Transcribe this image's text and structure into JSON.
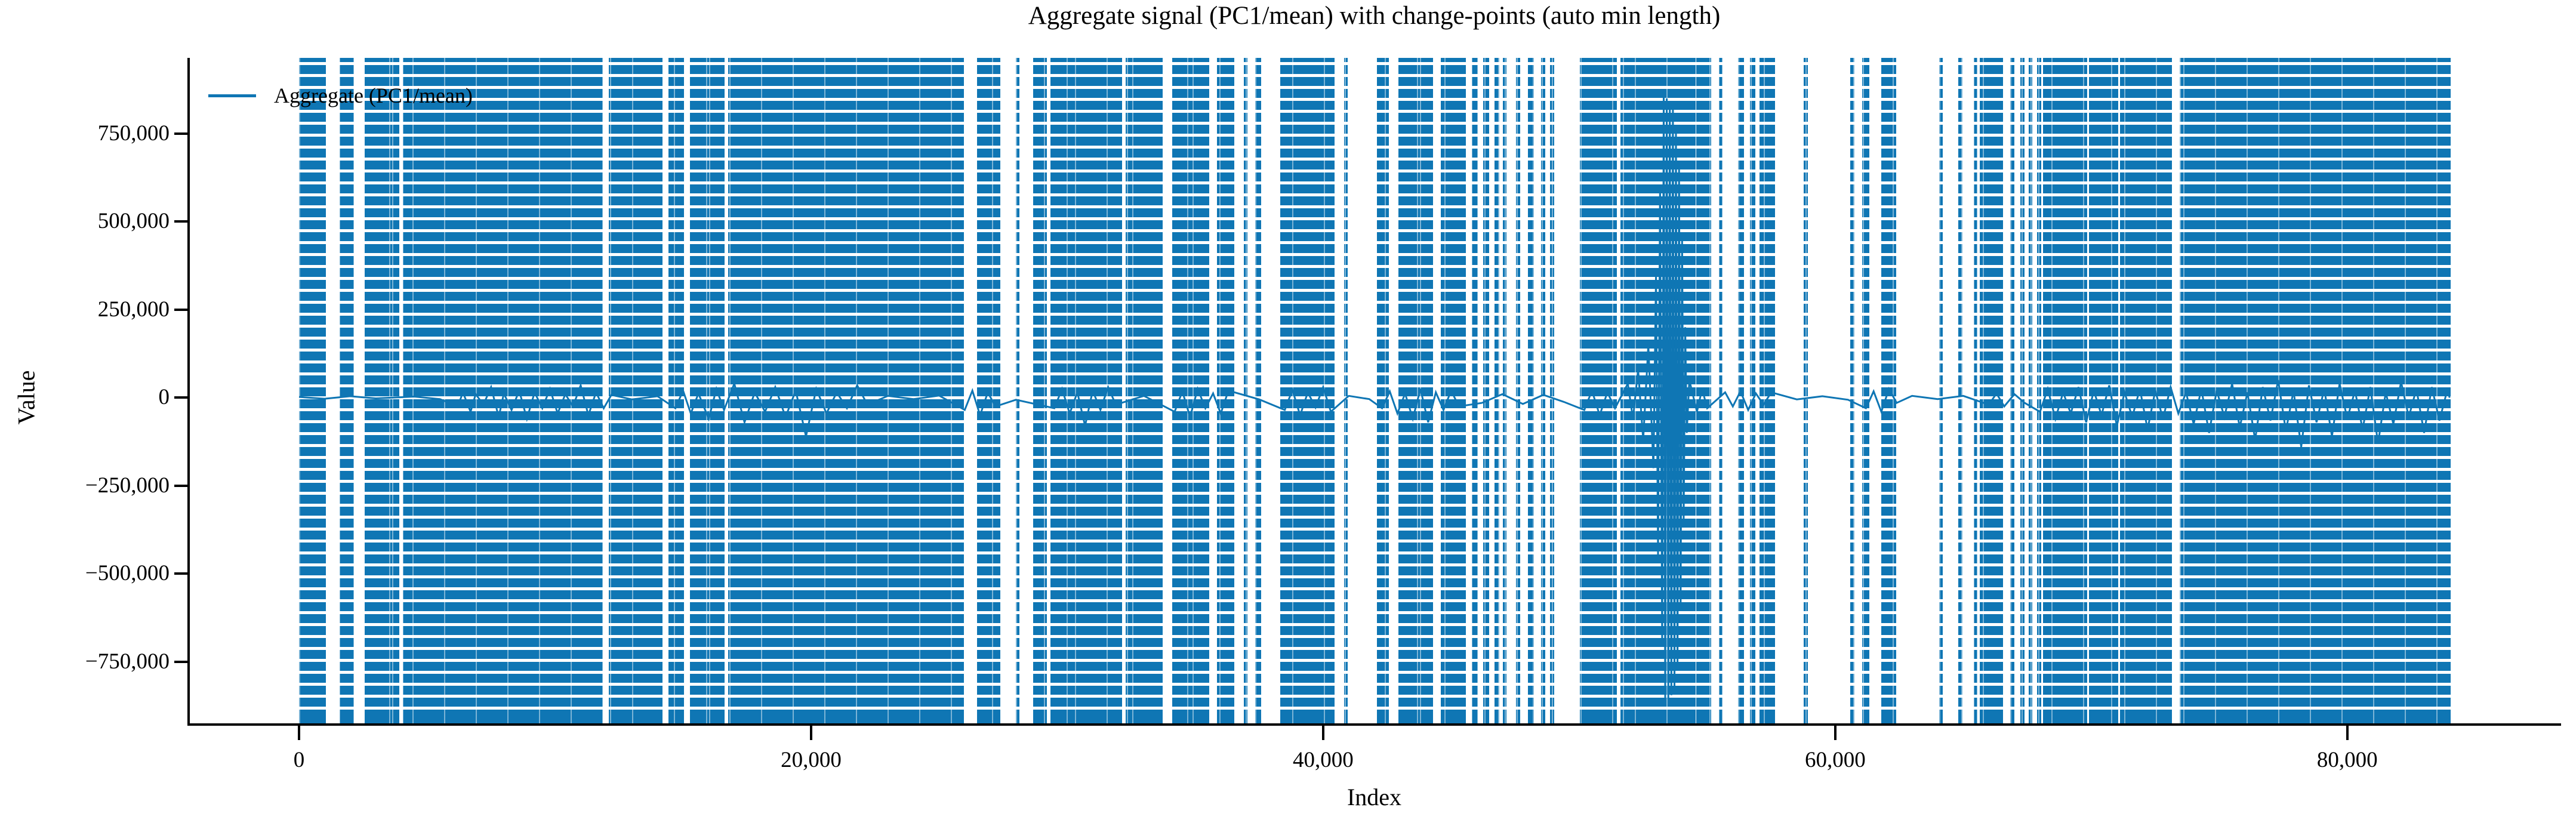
{
  "title": "Aggregate signal (PC1/mean) with change-points (auto min length)",
  "legend": {
    "label": "Aggregate (PC1/mean)"
  },
  "axes": {
    "xlabel": "Index",
    "ylabel": "Value"
  },
  "colors": {
    "line": "#0f76b4",
    "changepoint": "#0f76b4",
    "axis": "#000000",
    "background": "#ffffff"
  },
  "chart_data": {
    "type": "line",
    "title": "Aggregate signal (PC1/mean) with change-points (auto min length)",
    "xlabel": "Index",
    "ylabel": "Value",
    "grid": false,
    "legend_position": "upper left",
    "xlim": [
      -4290,
      88280
    ],
    "ylim": [
      -925000,
      965000
    ],
    "x_ticks": [
      {
        "value": 0,
        "label": "0"
      },
      {
        "value": 20000,
        "label": "20,000"
      },
      {
        "value": 40000,
        "label": "40,000"
      },
      {
        "value": 60000,
        "label": "60,000"
      },
      {
        "value": 80000,
        "label": "80,000"
      }
    ],
    "y_ticks": [
      {
        "value": 750000,
        "label": "750,000"
      },
      {
        "value": 500000,
        "label": "500,000"
      },
      {
        "value": 250000,
        "label": "250,000"
      },
      {
        "value": 0,
        "label": "0"
      },
      {
        "value": -250000,
        "label": "−250,000"
      },
      {
        "value": -500000,
        "label": "−500,000"
      },
      {
        "value": -750000,
        "label": "−750,000"
      }
    ],
    "series": [
      {
        "name": "Aggregate (PC1/mean)",
        "color": "#0f76b4",
        "points": [
          [
            0,
            2000
          ],
          [
            1000,
            -3000
          ],
          [
            2000,
            4000
          ],
          [
            3000,
            -2000
          ],
          [
            4500,
            3000
          ],
          [
            5500,
            -4000
          ],
          [
            6200,
            -25000
          ],
          [
            6400,
            15000
          ],
          [
            6700,
            -40000
          ],
          [
            6900,
            10000
          ],
          [
            7200,
            -20000
          ],
          [
            7500,
            30000
          ],
          [
            7800,
            -55000
          ],
          [
            8000,
            12000
          ],
          [
            8300,
            -35000
          ],
          [
            8600,
            20000
          ],
          [
            8900,
            -60000
          ],
          [
            9200,
            15000
          ],
          [
            9500,
            -30000
          ],
          [
            9800,
            25000
          ],
          [
            10100,
            -45000
          ],
          [
            10400,
            10000
          ],
          [
            10700,
            -25000
          ],
          [
            11000,
            35000
          ],
          [
            11300,
            -50000
          ],
          [
            11600,
            15000
          ],
          [
            11900,
            -30000
          ],
          [
            12200,
            8000
          ],
          [
            13000,
            -5000
          ],
          [
            14000,
            4000
          ],
          [
            14700,
            -30000
          ],
          [
            15000,
            20000
          ],
          [
            15300,
            -45000
          ],
          [
            15600,
            12000
          ],
          [
            16000,
            -60000
          ],
          [
            16300,
            25000
          ],
          [
            16600,
            -35000
          ],
          [
            17000,
            40000
          ],
          [
            17400,
            -70000
          ],
          [
            17800,
            15000
          ],
          [
            18200,
            -40000
          ],
          [
            18600,
            30000
          ],
          [
            19000,
            -55000
          ],
          [
            19400,
            20000
          ],
          [
            19800,
            -110000
          ],
          [
            20200,
            25000
          ],
          [
            20600,
            -45000
          ],
          [
            21000,
            15000
          ],
          [
            21400,
            -30000
          ],
          [
            21800,
            35000
          ],
          [
            22200,
            -20000
          ],
          [
            23000,
            5000
          ],
          [
            24000,
            -4000
          ],
          [
            25000,
            6000
          ],
          [
            26000,
            -35000
          ],
          [
            26300,
            20000
          ],
          [
            26600,
            -50000
          ],
          [
            26900,
            15000
          ],
          [
            27200,
            -25000
          ],
          [
            28000,
            -6000
          ],
          [
            29500,
            -30000
          ],
          [
            29800,
            25000
          ],
          [
            30100,
            -45000
          ],
          [
            30400,
            15000
          ],
          [
            30700,
            -80000
          ],
          [
            31000,
            20000
          ],
          [
            31300,
            -35000
          ],
          [
            31600,
            30000
          ],
          [
            31900,
            -20000
          ],
          [
            33000,
            5000
          ],
          [
            34200,
            -40000
          ],
          [
            34500,
            18000
          ],
          [
            34800,
            -55000
          ],
          [
            35100,
            25000
          ],
          [
            35400,
            -30000
          ],
          [
            35700,
            12000
          ],
          [
            36000,
            -45000
          ],
          [
            36300,
            20000
          ],
          [
            37500,
            -5000
          ],
          [
            38500,
            -35000
          ],
          [
            38800,
            22000
          ],
          [
            39100,
            -50000
          ],
          [
            39400,
            15000
          ],
          [
            39700,
            -28000
          ],
          [
            40000,
            30000
          ],
          [
            40300,
            -40000
          ],
          [
            41000,
            5000
          ],
          [
            41800,
            -4000
          ],
          [
            42300,
            -30000
          ],
          [
            42600,
            18000
          ],
          [
            42900,
            -45000
          ],
          [
            43200,
            12000
          ],
          [
            43500,
            -60000
          ],
          [
            43800,
            25000
          ],
          [
            44100,
            -70000
          ],
          [
            44400,
            15000
          ],
          [
            44700,
            -35000
          ],
          [
            45000,
            20000
          ],
          [
            45300,
            -25000
          ],
          [
            46200,
            -15000
          ],
          [
            47000,
            10000
          ],
          [
            47800,
            -18000
          ],
          [
            48600,
            8000
          ],
          [
            49400,
            -12000
          ],
          [
            50200,
            -35000
          ],
          [
            50500,
            20000
          ],
          [
            50800,
            -50000
          ],
          [
            51100,
            15000
          ],
          [
            51400,
            -30000
          ],
          [
            51900,
            40000
          ],
          [
            52100,
            -60000
          ],
          [
            52300,
            80000
          ],
          [
            52500,
            -120000
          ],
          [
            52700,
            150000
          ],
          [
            52900,
            -200000
          ],
          [
            53000,
            350000
          ],
          [
            53080,
            -450000
          ],
          [
            53160,
            600000
          ],
          [
            53240,
            -700000
          ],
          [
            53300,
            870000
          ],
          [
            53360,
            -860000
          ],
          [
            53420,
            850000
          ],
          [
            53480,
            -855000
          ],
          [
            53540,
            840000
          ],
          [
            53600,
            -845000
          ],
          [
            53660,
            820000
          ],
          [
            53720,
            -830000
          ],
          [
            53780,
            750000
          ],
          [
            53840,
            -760000
          ],
          [
            53900,
            650000
          ],
          [
            53960,
            -600000
          ],
          [
            54020,
            450000
          ],
          [
            54080,
            -350000
          ],
          [
            54140,
            200000
          ],
          [
            54200,
            -100000
          ],
          [
            54300,
            50000
          ],
          [
            54600,
            -40000
          ],
          [
            54800,
            25000
          ],
          [
            55000,
            -30000
          ],
          [
            55700,
            15000
          ],
          [
            56000,
            -25000
          ],
          [
            56300,
            18000
          ],
          [
            56600,
            -35000
          ],
          [
            56900,
            12000
          ],
          [
            57200,
            -20000
          ],
          [
            57500,
            15000
          ],
          [
            58500,
            -5000
          ],
          [
            59500,
            4000
          ],
          [
            60500,
            -6000
          ],
          [
            61200,
            -30000
          ],
          [
            61500,
            18000
          ],
          [
            61800,
            -40000
          ],
          [
            62100,
            25000
          ],
          [
            62400,
            -15000
          ],
          [
            63000,
            5000
          ],
          [
            64000,
            -4000
          ],
          [
            65000,
            5000
          ],
          [
            66000,
            -20000
          ],
          [
            66300,
            12000
          ],
          [
            66600,
            -25000
          ],
          [
            67000,
            10000
          ],
          [
            67400,
            -15000
          ],
          [
            68000,
            -40000
          ],
          [
            68300,
            25000
          ],
          [
            68600,
            -60000
          ],
          [
            68900,
            15000
          ],
          [
            69200,
            -45000
          ],
          [
            69500,
            30000
          ],
          [
            69800,
            -70000
          ],
          [
            70100,
            20000
          ],
          [
            70400,
            -50000
          ],
          [
            70700,
            35000
          ],
          [
            71000,
            -80000
          ],
          [
            71300,
            15000
          ],
          [
            71600,
            -55000
          ],
          [
            71900,
            25000
          ],
          [
            72200,
            -90000
          ],
          [
            72500,
            20000
          ],
          [
            72800,
            -60000
          ],
          [
            73100,
            30000
          ],
          [
            73400,
            -45000
          ],
          [
            73700,
            15000
          ],
          [
            74000,
            -75000
          ],
          [
            74300,
            25000
          ],
          [
            74600,
            -100000
          ],
          [
            74900,
            20000
          ],
          [
            75200,
            -55000
          ],
          [
            75500,
            40000
          ],
          [
            75800,
            -85000
          ],
          [
            76100,
            15000
          ],
          [
            76400,
            -120000
          ],
          [
            76700,
            30000
          ],
          [
            77000,
            -65000
          ],
          [
            77300,
            50000
          ],
          [
            77600,
            -95000
          ],
          [
            77900,
            20000
          ],
          [
            78200,
            -140000
          ],
          [
            78500,
            35000
          ],
          [
            78800,
            -70000
          ],
          [
            79100,
            25000
          ],
          [
            79400,
            -110000
          ],
          [
            79700,
            40000
          ],
          [
            80000,
            -60000
          ],
          [
            80300,
            20000
          ],
          [
            80600,
            -90000
          ],
          [
            80900,
            30000
          ],
          [
            81200,
            -130000
          ],
          [
            81500,
            15000
          ],
          [
            81800,
            -75000
          ],
          [
            82100,
            45000
          ],
          [
            82400,
            -55000
          ],
          [
            82700,
            25000
          ],
          [
            83000,
            -100000
          ],
          [
            83300,
            30000
          ],
          [
            83600,
            -65000
          ],
          [
            83900,
            20000
          ],
          [
            84000,
            0
          ]
        ]
      }
    ],
    "change_points": {
      "style": "dashed-vertical",
      "color": "#0f76b4",
      "segments": [
        [
          0,
          1050
        ],
        [
          1590,
          2150
        ],
        [
          2560,
          3920
        ],
        [
          4050,
          11870
        ],
        [
          12100,
          14200
        ],
        [
          14430,
          15040
        ],
        [
          15270,
          16620
        ],
        [
          16760,
          25970
        ],
        [
          26480,
          27390
        ],
        [
          28000,
          28140
        ],
        [
          28670,
          29210
        ],
        [
          29350,
          32140
        ],
        [
          32280,
          33730
        ],
        [
          34100,
          35550
        ],
        [
          35850,
          36530
        ],
        [
          36900,
          37040
        ],
        [
          37340,
          37570
        ],
        [
          38320,
          40440
        ],
        [
          40810,
          40950
        ],
        [
          42100,
          42560
        ],
        [
          42940,
          44290
        ],
        [
          44590,
          45570
        ],
        [
          45800,
          46040
        ],
        [
          46250,
          46480
        ],
        [
          46700,
          46870
        ],
        [
          47010,
          47170
        ],
        [
          47520,
          47690
        ],
        [
          47990,
          48220
        ],
        [
          48500,
          48670
        ],
        [
          48870,
          49030
        ],
        [
          50020,
          51470
        ],
        [
          51610,
          54540
        ],
        [
          54560,
          55150
        ],
        [
          55450,
          55590
        ],
        [
          56200,
          56430
        ],
        [
          56660,
          56870
        ],
        [
          57040,
          57640
        ],
        [
          58760,
          58930
        ],
        [
          60580,
          60740
        ],
        [
          61050,
          61330
        ],
        [
          61790,
          62380
        ],
        [
          64050,
          64190
        ],
        [
          64800,
          64960
        ],
        [
          65400,
          65550
        ],
        [
          65640,
          66550
        ],
        [
          66830,
          66990
        ],
        [
          67220,
          67400
        ],
        [
          67550,
          67700
        ],
        [
          67890,
          68040
        ],
        [
          68110,
          69830
        ],
        [
          69900,
          71050
        ],
        [
          71120,
          73140
        ],
        [
          73450,
          73590
        ],
        [
          73600,
          84030
        ]
      ]
    }
  }
}
